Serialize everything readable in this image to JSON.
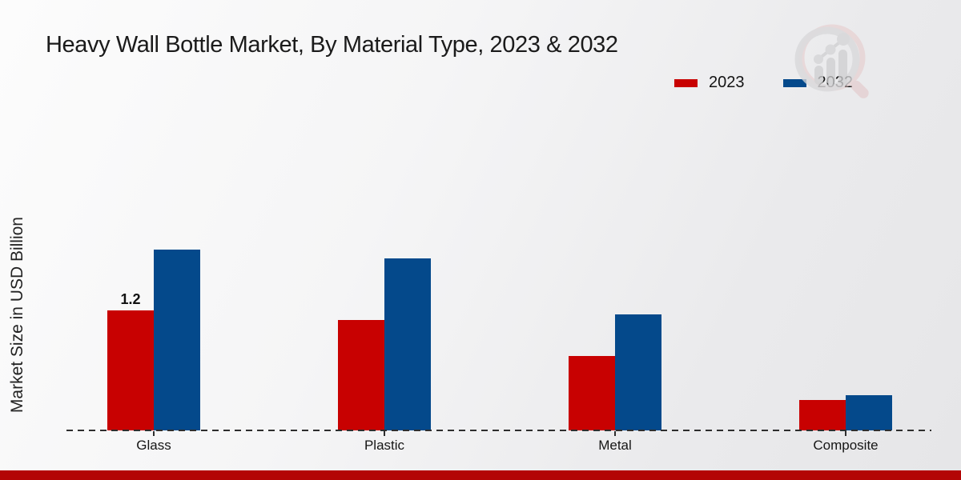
{
  "title": "Heavy Wall Bottle Market, By Material Type, 2023 & 2032",
  "ylabel": "Market Size in USD Billion",
  "legend": [
    {
      "label": "2023",
      "color": "#c80101"
    },
    {
      "label": "2032",
      "color": "#04498b"
    }
  ],
  "branding": {
    "logo": "market-research-magnifier-chart-logo",
    "bottom_bar_color": "#b30505"
  },
  "chart_data": {
    "type": "bar",
    "title": "Heavy Wall Bottle Market, By Material Type, 2023 & 2032",
    "ylabel": "Market Size in USD Billion",
    "xlabel": "",
    "categories": [
      "Glass",
      "Plastic",
      "Metal",
      "Composite"
    ],
    "series": [
      {
        "name": "2023",
        "color": "#c80101",
        "values": [
          1.2,
          1.1,
          0.74,
          0.3
        ]
      },
      {
        "name": "2032",
        "color": "#04498b",
        "values": [
          1.81,
          1.72,
          1.16,
          0.35
        ]
      }
    ],
    "annotations": [
      {
        "category_index": 0,
        "series_index": 0,
        "text": "1.2"
      }
    ],
    "ylim": [
      0,
      2.0
    ],
    "grid": false,
    "baseline_style": "dashed",
    "legend_position": "top-right"
  }
}
